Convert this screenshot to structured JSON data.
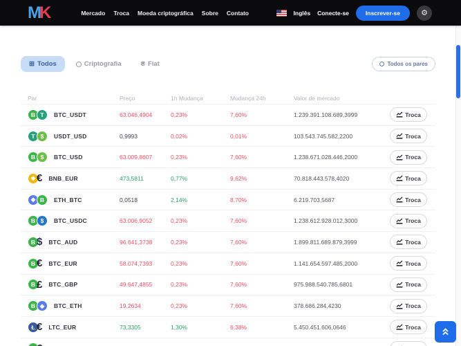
{
  "header": {
    "logo_m": "M",
    "logo_k": "K",
    "nav": [
      "Mercado",
      "Troca",
      "Moeda criptográfica",
      "Sobre",
      "Contato"
    ],
    "language": "Inglês",
    "login_label": "Conecte-se",
    "signup_label": "Inscrever-se",
    "settings_icon": "gear-icon",
    "flag_icon": "us-flag-icon"
  },
  "filters": {
    "tabs": [
      {
        "label": "Todos",
        "icon": "grid-icon",
        "active": true
      },
      {
        "label": "Criptografia",
        "icon": "coin-icon",
        "active": false
      },
      {
        "label": "Fiat",
        "icon": "fiat-currency-icon",
        "active": false
      }
    ],
    "all_pairs_label": "Todos os pares"
  },
  "table": {
    "columns": [
      "Par",
      "Preço",
      "1h Mudança",
      "Mudança 24h",
      "Valor de mercado"
    ],
    "trade_label": "Troca",
    "rows": [
      {
        "pair": "BTC_USDT",
        "price": "63.046,4904",
        "price_dir": "down",
        "change_1h": "0,23%",
        "dir_1h": "down",
        "change_24h": "7,60%",
        "dir_24h": "down",
        "market_cap": "1.239.391.108.689,3999",
        "icons": [
          {
            "name": "btc-icon",
            "kind": "circle",
            "bg": "#3bb54a",
            "glyph": "B"
          },
          {
            "name": "usdt-icon",
            "kind": "circle",
            "bg": "#26a17b",
            "glyph": "T"
          }
        ]
      },
      {
        "pair": "USDT_USD",
        "price": "0,9993",
        "price_dir": "neutral",
        "change_1h": "0,02%",
        "dir_1h": "down",
        "change_24h": "0,01%",
        "dir_24h": "down",
        "market_cap": "103.543.745.582,2200",
        "icons": [
          {
            "name": "usdt-icon",
            "kind": "circle",
            "bg": "#26a17b",
            "glyph": "T"
          },
          {
            "name": "usd-icon",
            "kind": "circle",
            "bg": "#6cbf47",
            "glyph": "$"
          }
        ]
      },
      {
        "pair": "BTC_USD",
        "price": "63.009,8607",
        "price_dir": "down",
        "change_1h": "0,23%",
        "dir_1h": "down",
        "change_24h": "7,60%",
        "dir_24h": "down",
        "market_cap": "1.238.671.028.446,2000",
        "icons": [
          {
            "name": "btc-icon",
            "kind": "circle",
            "bg": "#3bb54a",
            "glyph": "B"
          },
          {
            "name": "usd-icon",
            "kind": "circle",
            "bg": "#6cbf47",
            "glyph": "$"
          }
        ]
      },
      {
        "pair": "BNB_EUR",
        "price": "473,5811",
        "price_dir": "up",
        "change_1h": "0,77%",
        "dir_1h": "up",
        "change_24h": "9,62%",
        "dir_24h": "down",
        "market_cap": "70.818.443.578,4020",
        "icons": [
          {
            "name": "bnb-icon",
            "kind": "circle",
            "bg": "#f0b90b",
            "glyph": "◆"
          },
          {
            "name": "eur-icon",
            "kind": "glyph",
            "color": "#1c2030",
            "glyph": "€"
          }
        ]
      },
      {
        "pair": "ETH_BTC",
        "price": "0,0518",
        "price_dir": "neutral",
        "change_1h": "2,14%",
        "dir_1h": "up",
        "change_24h": "8,70%",
        "dir_24h": "down",
        "market_cap": "6.219.703,5687",
        "icons": [
          {
            "name": "eth-icon",
            "kind": "circle",
            "bg": "#5b7be8",
            "glyph": "◆"
          },
          {
            "name": "btc-icon",
            "kind": "circle",
            "bg": "#3bb54a",
            "glyph": "B"
          }
        ]
      },
      {
        "pair": "BTC_USDC",
        "price": "63.006,9052",
        "price_dir": "down",
        "change_1h": "0,23%",
        "dir_1h": "down",
        "change_24h": "7,60%",
        "dir_24h": "down",
        "market_cap": "1.238.612.928.012,3000",
        "icons": [
          {
            "name": "btc-icon",
            "kind": "circle",
            "bg": "#3bb54a",
            "glyph": "B"
          },
          {
            "name": "usdc-icon",
            "kind": "circle",
            "bg": "#2775ca",
            "glyph": "$"
          }
        ]
      },
      {
        "pair": "BTC_AUD",
        "price": "96.641,3738",
        "price_dir": "down",
        "change_1h": "0,23%",
        "dir_1h": "down",
        "change_24h": "7,60%",
        "dir_24h": "down",
        "market_cap": "1.899.811.689.879,3999",
        "icons": [
          {
            "name": "btc-icon",
            "kind": "circle",
            "bg": "#3bb54a",
            "glyph": "B"
          },
          {
            "name": "aud-icon",
            "kind": "glyph",
            "color": "#262e52",
            "glyph": "$"
          }
        ]
      },
      {
        "pair": "BTC_EUR",
        "price": "58.074,7393",
        "price_dir": "down",
        "change_1h": "0,23%",
        "dir_1h": "down",
        "change_24h": "7,60%",
        "dir_24h": "down",
        "market_cap": "1.141.654.597.485,2000",
        "icons": [
          {
            "name": "btc-icon",
            "kind": "circle",
            "bg": "#3bb54a",
            "glyph": "B"
          },
          {
            "name": "eur-icon",
            "kind": "glyph",
            "color": "#1c2030",
            "glyph": "€"
          }
        ]
      },
      {
        "pair": "BTC_GBP",
        "price": "49.647,4855",
        "price_dir": "down",
        "change_1h": "0,23%",
        "dir_1h": "down",
        "change_24h": "7,60%",
        "dir_24h": "down",
        "market_cap": "975.988.540.785,6801",
        "icons": [
          {
            "name": "btc-icon",
            "kind": "circle",
            "bg": "#3bb54a",
            "glyph": "B"
          },
          {
            "name": "gbp-icon",
            "kind": "glyph",
            "color": "#1c2030",
            "glyph": "£"
          }
        ]
      },
      {
        "pair": "BTC_ETH",
        "price": "19,2634",
        "price_dir": "down",
        "change_1h": "0,23%",
        "dir_1h": "down",
        "change_24h": "7,60%",
        "dir_24h": "down",
        "market_cap": "378.686.284,4230",
        "icons": [
          {
            "name": "btc-icon",
            "kind": "circle",
            "bg": "#3bb54a",
            "glyph": "B"
          },
          {
            "name": "eth-icon",
            "kind": "circle",
            "bg": "#5b7be8",
            "glyph": "◆"
          }
        ]
      },
      {
        "pair": "LTC_EUR",
        "price": "73,3305",
        "price_dir": "up",
        "change_1h": "1,30%",
        "dir_1h": "up",
        "change_24h": "6,38%",
        "dir_24h": "down",
        "market_cap": "5.450.451.606,0646",
        "icons": [
          {
            "name": "ltc-icon",
            "kind": "circle",
            "bg": "#3a5ba0",
            "glyph": "Ł"
          },
          {
            "name": "eur-icon",
            "kind": "glyph",
            "color": "#1c2030",
            "glyph": "€"
          }
        ]
      },
      {
        "pair": "",
        "price": "",
        "price_dir": "neutral",
        "change_1h": "",
        "dir_1h": "down",
        "change_24h": "",
        "dir_24h": "down",
        "market_cap": "",
        "partial": true,
        "icons": [
          {
            "name": "btc-icon",
            "kind": "circle",
            "bg": "#3bb54a",
            "glyph": "B"
          },
          {
            "name": "eur-icon",
            "kind": "glyph",
            "color": "#1c2030",
            "glyph": "€"
          }
        ]
      }
    ]
  },
  "colors": {
    "accent_blue": "#1f6ce8",
    "negative_red": "#ec4f63",
    "positive_green": "#2aa368",
    "tab_active_bg": "#c7dcf7",
    "navbar_bg": "#0b0b0d",
    "scrollbar_thumb": "#2b6fe0"
  }
}
